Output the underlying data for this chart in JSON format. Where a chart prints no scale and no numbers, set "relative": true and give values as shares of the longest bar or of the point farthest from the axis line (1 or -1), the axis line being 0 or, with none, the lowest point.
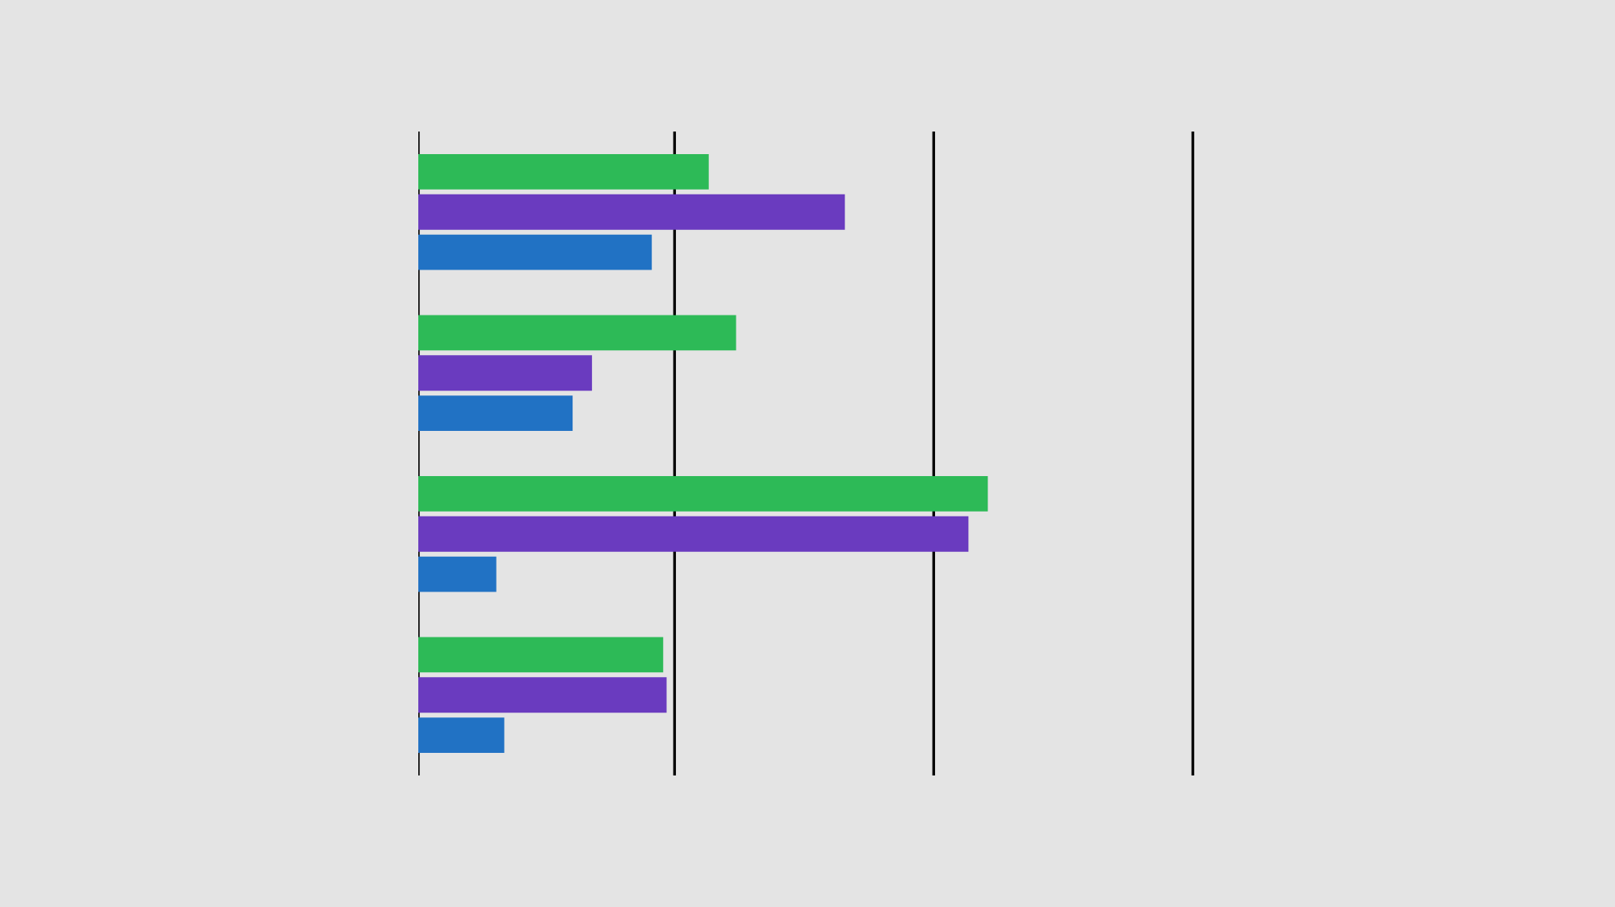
{
  "chart_data": {
    "type": "bar",
    "orientation": "horizontal",
    "relative": true,
    "ref_lines": [
      {
        "axis": "x",
        "value": 0,
        "color": "#000000"
      },
      {
        "axis": "x",
        "value": 0.45,
        "color": "#000000"
      },
      {
        "axis": "x",
        "value": 0.905,
        "color": "#000000"
      },
      {
        "axis": "x",
        "value": 1.36,
        "color": "#000000"
      }
    ],
    "categories": [
      null,
      null,
      null,
      null
    ],
    "series": [
      {
        "color": "#2dba57",
        "values": [
          0.51,
          0.558,
          1,
          0.43
        ]
      },
      {
        "color": "#6a3bbf",
        "values": [
          0.749,
          0.305,
          0.966,
          0.436
        ]
      },
      {
        "color": "#2172c4",
        "values": [
          0.41,
          0.271,
          0.137,
          0.151
        ]
      }
    ]
  }
}
